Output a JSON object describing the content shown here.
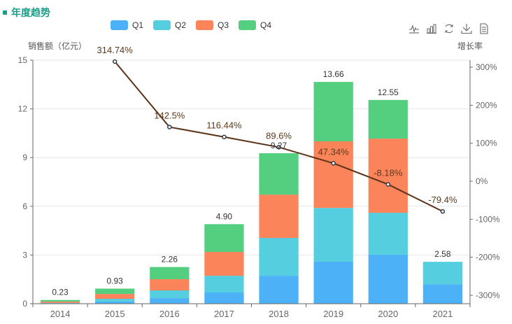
{
  "header": {
    "title": "年度趋势"
  },
  "toolbox": [
    {
      "name": "line-chart-icon",
      "title": "切换为折线图"
    },
    {
      "name": "bar-chart-icon",
      "title": "切换为柱状图"
    },
    {
      "name": "restore-icon",
      "title": "还原"
    },
    {
      "name": "download-icon",
      "title": "保存为图片"
    },
    {
      "name": "data-view-icon",
      "title": "数据视图"
    }
  ],
  "chart_data": {
    "type": "bar",
    "stacked": true,
    "categories": [
      "2014",
      "2015",
      "2016",
      "2017",
      "2018",
      "2019",
      "2020",
      "2021"
    ],
    "series": [
      {
        "name": "Q1",
        "color": "#4db1f7",
        "values": [
          0.02,
          0.13,
          0.34,
          0.69,
          1.72,
          2.59,
          3.02,
          1.2
        ]
      },
      {
        "name": "Q2",
        "color": "#55cfdf",
        "values": [
          0.03,
          0.17,
          0.48,
          1.03,
          2.33,
          3.31,
          2.58,
          1.38
        ]
      },
      {
        "name": "Q3",
        "color": "#fb845b",
        "values": [
          0.08,
          0.3,
          0.69,
          1.47,
          2.67,
          4.1,
          4.57,
          0
        ]
      },
      {
        "name": "Q4",
        "color": "#54cf80",
        "values": [
          0.1,
          0.33,
          0.75,
          1.71,
          2.55,
          3.66,
          2.38,
          0
        ]
      }
    ],
    "totals": [
      "0.23",
      "0.93",
      "2.26",
      "4.90",
      "9.27",
      "13.66",
      "12.55",
      "2.58"
    ],
    "growth": {
      "name": "增长率",
      "color": "#5c3317",
      "values": [
        null,
        314.74,
        142.5,
        116.44,
        89.6,
        47.34,
        -8.18,
        -79.4
      ],
      "labels": [
        "",
        "314.74%",
        "142.5%",
        "116.44%",
        "89.6%",
        "47.34%",
        "-8.18%",
        "-79.4%"
      ]
    },
    "ylabel_left": "销售额（亿元）",
    "ylabel_right": "增长率",
    "ylim_left": [
      0,
      15
    ],
    "yticks_left": [
      "0",
      "3",
      "6",
      "9",
      "12",
      "15"
    ],
    "ylim_right": [
      -300,
      300
    ],
    "yticks_right": [
      "-300%",
      "-200%",
      "-100%",
      "0%",
      "100%",
      "200%",
      "300%"
    ],
    "grid": true,
    "legend_position": "top-center"
  }
}
